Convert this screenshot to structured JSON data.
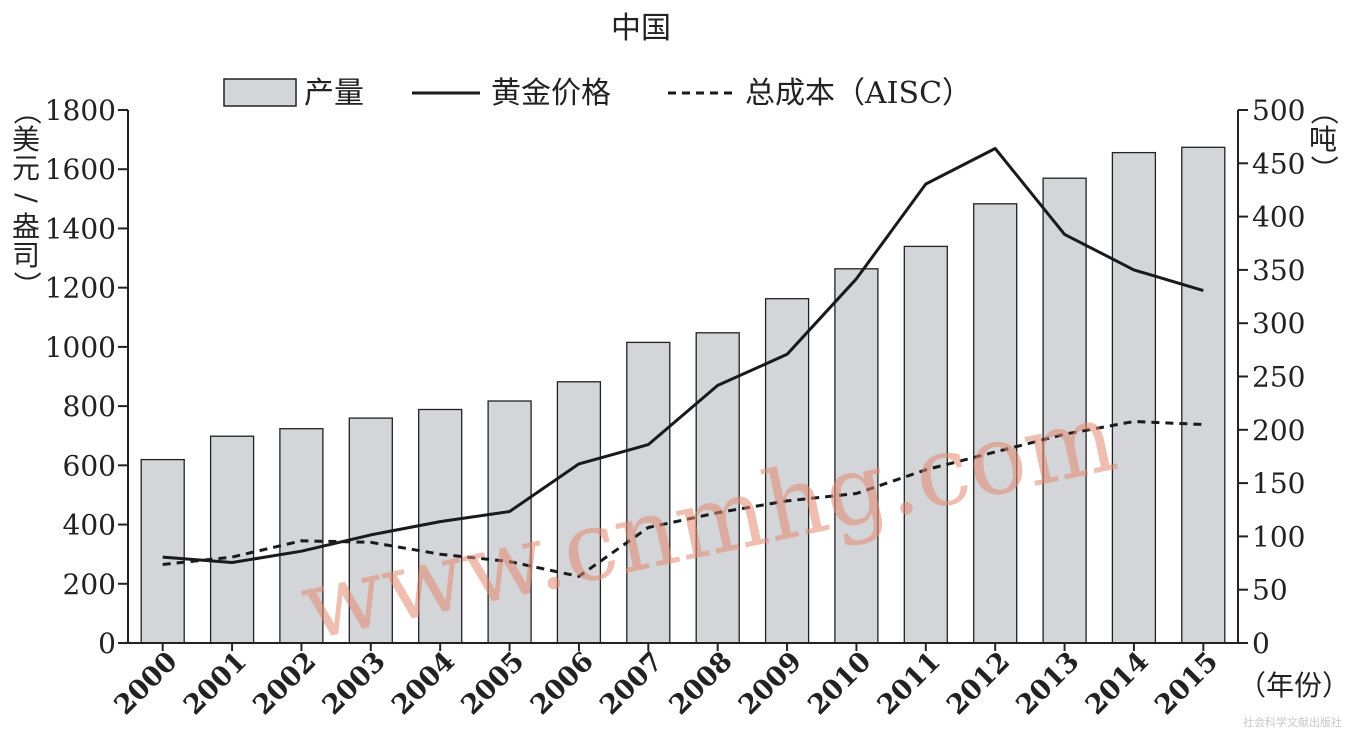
{
  "chart_data": {
    "type": "bar",
    "title": "中国",
    "categories": [
      "2000",
      "2001",
      "2002",
      "2003",
      "2004",
      "2005",
      "2006",
      "2007",
      "2008",
      "2009",
      "2010",
      "2011",
      "2012",
      "2013",
      "2014",
      "2015"
    ],
    "series": [
      {
        "name": "产量",
        "type": "bar",
        "axis": "right",
        "color": "#d3d5d8",
        "values": [
          172,
          194,
          201,
          211,
          219,
          227,
          245,
          282,
          291,
          323,
          351,
          372,
          412,
          436,
          460,
          465
        ]
      },
      {
        "name": "黄金价格",
        "type": "line",
        "style": "solid",
        "axis": "left",
        "color": "#1a1a1a",
        "values": [
          290,
          272,
          310,
          365,
          410,
          444,
          605,
          670,
          870,
          975,
          1230,
          1550,
          1670,
          1380,
          1260,
          1190
        ]
      },
      {
        "name": "总成本（AISC）",
        "type": "line",
        "style": "dashed",
        "axis": "left",
        "color": "#1a1a1a",
        "values": [
          265,
          290,
          345,
          340,
          300,
          275,
          225,
          390,
          440,
          480,
          505,
          585,
          645,
          705,
          748,
          738
        ]
      }
    ],
    "y_left": {
      "label": "（美元/盎司）",
      "range": [
        0,
        1800
      ],
      "ticks": [
        0,
        200,
        400,
        600,
        800,
        1000,
        1200,
        1400,
        1600,
        1800
      ]
    },
    "y_right": {
      "label": "（吨）",
      "range": [
        0,
        500
      ],
      "ticks": [
        0,
        50,
        100,
        150,
        200,
        250,
        300,
        350,
        400,
        450,
        500
      ]
    },
    "x_unit": "（年份）",
    "legend_position": "top-center",
    "grid": false
  },
  "watermark": "www.cnmhg.com",
  "footer": "社会科学文献出版社"
}
